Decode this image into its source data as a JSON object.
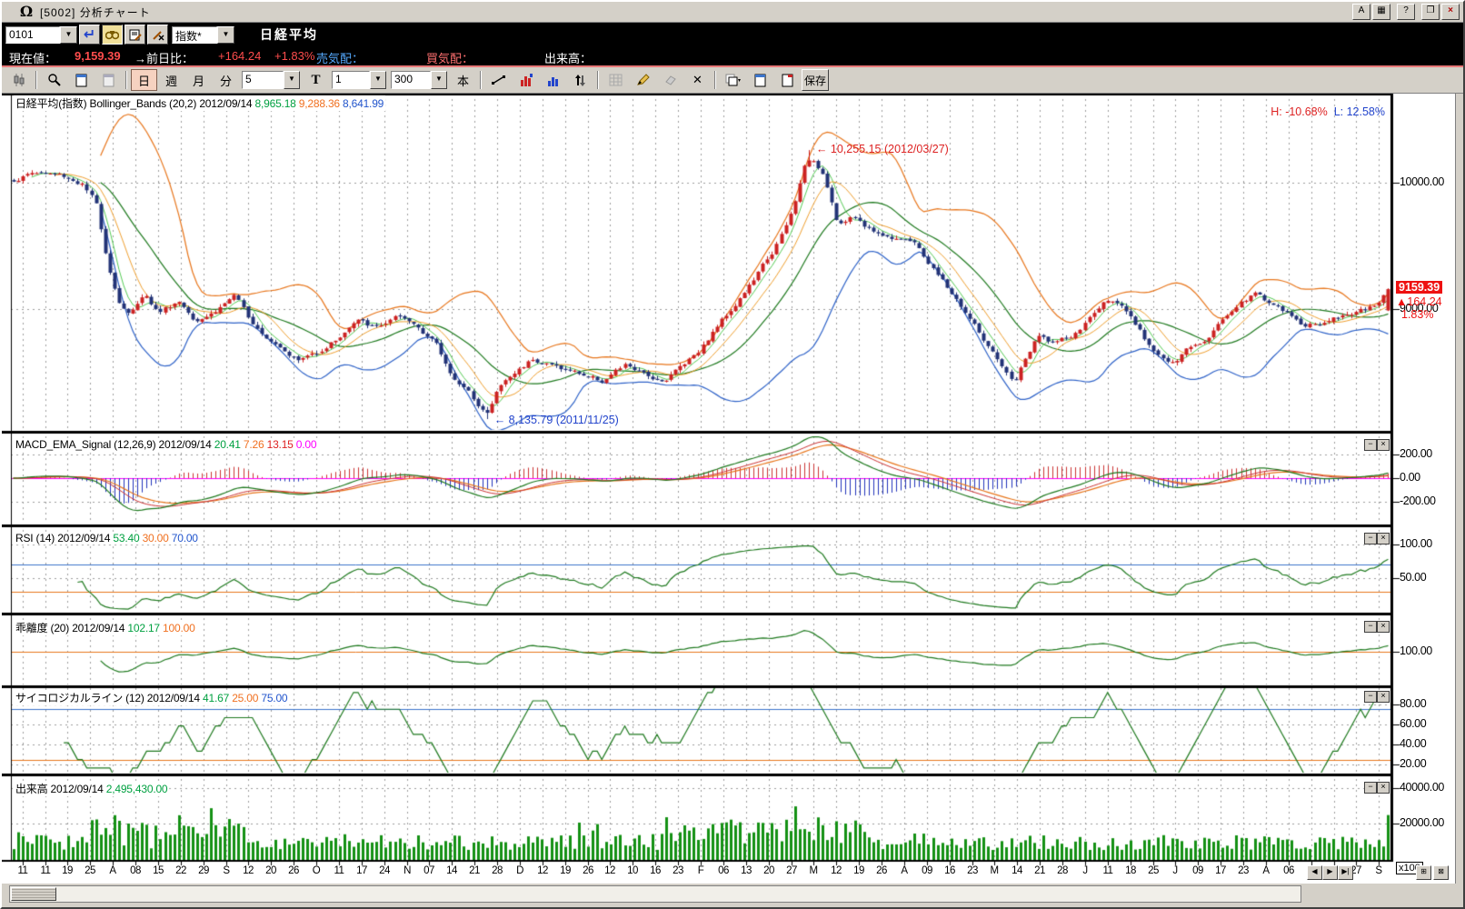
{
  "titlebar": {
    "title": "[5002] 分析チャート",
    "logo": "Ω",
    "btn_a": "A",
    "btn_help": "?"
  },
  "symbol_bar": {
    "code": "0101",
    "category": "指数*",
    "name": "日経平均"
  },
  "price_bar": {
    "genzaine_label": "現在値：",
    "price": "9,159.39",
    "zenjitsuhi_label": "→前日比：",
    "change": "+164.24",
    "change_pct": "+1.83%",
    "urikehai_label": "売気配：",
    "kaikehai_label": "買気配：",
    "dekidaka_label": "出来高："
  },
  "toolbar": {
    "period_day": "日",
    "period_week": "週",
    "period_month": "月",
    "period_min": "分",
    "min_combo": "5",
    "tick_label": "T",
    "tick_combo": "1",
    "bars_combo": "300",
    "bars_unit": "本",
    "save": "保存",
    "x_glyph": "✕"
  },
  "colors": {
    "up": "#cc2222",
    "down": "#223377",
    "bb_upper": "#e8761c",
    "bb_mid": "#1f7a1f",
    "bb_lower": "#2e62c8",
    "ma_fast": "#55cc55",
    "ma_mid": "#f0a030",
    "macd": "#1f7a1f",
    "signal": "#cc3333",
    "signal2": "#e8761c",
    "zero": "#ff00ff",
    "hist_pos": "#cc3333",
    "hist_neg": "#2233bb",
    "line_green": "#1f7a1f",
    "line_orange": "#e8761c",
    "line_blue": "#3b74cc",
    "volume": "#149114",
    "grid": "#9c9c9c",
    "val_green": "#00a040",
    "val_orange": "#f07020",
    "val_blue": "#2255cc",
    "val_red": "#dd2222",
    "val_magenta": "#ff00ff",
    "neg_red": "#dd2222",
    "pos_blue": "#2244cc"
  },
  "chart_data": {
    "type": "candlestick+indicators",
    "symbol": "日経平均(指数)",
    "date": "2012/09/14",
    "bars": 300,
    "seed": 1337,
    "close_keypoints": [
      [
        0.0,
        10020
      ],
      [
        0.015,
        10080
      ],
      [
        0.035,
        10060
      ],
      [
        0.05,
        9990
      ],
      [
        0.06,
        9830
      ],
      [
        0.068,
        9400
      ],
      [
        0.076,
        9080
      ],
      [
        0.085,
        8950
      ],
      [
        0.095,
        9140
      ],
      [
        0.105,
        8980
      ],
      [
        0.12,
        9070
      ],
      [
        0.132,
        8930
      ],
      [
        0.147,
        8990
      ],
      [
        0.16,
        9110
      ],
      [
        0.172,
        8920
      ],
      [
        0.185,
        8790
      ],
      [
        0.197,
        8700
      ],
      [
        0.207,
        8600
      ],
      [
        0.22,
        8660
      ],
      [
        0.235,
        8770
      ],
      [
        0.25,
        8910
      ],
      [
        0.263,
        8850
      ],
      [
        0.278,
        8930
      ],
      [
        0.293,
        8870
      ],
      [
        0.306,
        8760
      ],
      [
        0.316,
        8530
      ],
      [
        0.326,
        8400
      ],
      [
        0.336,
        8280
      ],
      [
        0.345,
        8180
      ],
      [
        0.353,
        8390
      ],
      [
        0.365,
        8500
      ],
      [
        0.378,
        8620
      ],
      [
        0.392,
        8560
      ],
      [
        0.41,
        8500
      ],
      [
        0.428,
        8440
      ],
      [
        0.446,
        8560
      ],
      [
        0.46,
        8470
      ],
      [
        0.474,
        8450
      ],
      [
        0.487,
        8570
      ],
      [
        0.5,
        8700
      ],
      [
        0.513,
        8890
      ],
      [
        0.526,
        9060
      ],
      [
        0.539,
        9240
      ],
      [
        0.552,
        9450
      ],
      [
        0.563,
        9670
      ],
      [
        0.57,
        9890
      ],
      [
        0.576,
        10180
      ],
      [
        0.583,
        10140
      ],
      [
        0.59,
        10060
      ],
      [
        0.6,
        9680
      ],
      [
        0.612,
        9720
      ],
      [
        0.624,
        9630
      ],
      [
        0.636,
        9570
      ],
      [
        0.648,
        9580
      ],
      [
        0.658,
        9490
      ],
      [
        0.67,
        9300
      ],
      [
        0.684,
        9100
      ],
      [
        0.698,
        8890
      ],
      [
        0.712,
        8650
      ],
      [
        0.722,
        8480
      ],
      [
        0.728,
        8430
      ],
      [
        0.736,
        8610
      ],
      [
        0.745,
        8780
      ],
      [
        0.758,
        8740
      ],
      [
        0.772,
        8790
      ],
      [
        0.785,
        8960
      ],
      [
        0.798,
        9100
      ],
      [
        0.81,
        8960
      ],
      [
        0.823,
        8760
      ],
      [
        0.836,
        8620
      ],
      [
        0.844,
        8560
      ],
      [
        0.854,
        8690
      ],
      [
        0.866,
        8770
      ],
      [
        0.878,
        8910
      ],
      [
        0.892,
        9060
      ],
      [
        0.904,
        9130
      ],
      [
        0.916,
        9040
      ],
      [
        0.928,
        8950
      ],
      [
        0.94,
        8870
      ],
      [
        0.952,
        8890
      ],
      [
        0.964,
        8940
      ],
      [
        0.977,
        8990
      ],
      [
        0.99,
        9010
      ],
      [
        1.0,
        9159.39
      ]
    ],
    "last_bar": {
      "open": 8992,
      "close": 9159.39,
      "high": 9166,
      "low": 8987,
      "volume": 24954
    },
    "panels": [
      {
        "id": "main",
        "range": [
          8050,
          10700
        ],
        "grid": [
          10000,
          9000
        ],
        "header_parts": [
          {
            "t": "日経平均(指数) Bollinger_Bands (20,2) 2012/09/14 ",
            "c": "#000000"
          },
          {
            "t": "8,965.18 ",
            "c": "#00a040"
          },
          {
            "t": "9,288.36 ",
            "c": "#f07020"
          },
          {
            "t": "8,641.99",
            "c": "#2255cc"
          }
        ],
        "y_labels": [
          {
            "v": 10000,
            "t": "10000.00"
          },
          {
            "v": 9000,
            "t": "9000.00"
          }
        ],
        "hl": {
          "h": "H: -10.68%",
          "l": "L: 12.58%"
        },
        "annotations": [
          {
            "anchor": "high",
            "text": "← 10,255.15 (2012/03/27)",
            "c": "#dd2222"
          },
          {
            "anchor": "low",
            "text": "← 8,135.79 (2011/11/25)",
            "c": "#2244cc"
          }
        ],
        "price_marker": {
          "price": "9159.39",
          "change": "▲164.24",
          "pct": "1.83%"
        }
      },
      {
        "id": "macd",
        "range": [
          -384,
          354
        ],
        "grid": [
          200,
          -200
        ],
        "zero": 0,
        "header_parts": [
          {
            "t": "MACD_EMA_Signal (12,26,9) 2012/09/14 ",
            "c": "#000000"
          },
          {
            "t": "20.41 ",
            "c": "#00a040"
          },
          {
            "t": "7.26 ",
            "c": "#f07020"
          },
          {
            "t": "13.15 ",
            "c": "#dd2222"
          },
          {
            "t": "0.00",
            "c": "#ff00ff"
          }
        ],
        "y_labels": [
          {
            "v": 200,
            "t": "200.00"
          },
          {
            "v": 0,
            "t": "0.00"
          },
          {
            "v": -200,
            "t": "-200.00"
          }
        ]
      },
      {
        "id": "rsi",
        "range": [
          0,
          122
        ],
        "grid": [
          100,
          50
        ],
        "hline_hi": 70,
        "hline_lo": 30,
        "header_parts": [
          {
            "t": "RSI (14) 2012/09/14 ",
            "c": "#000000"
          },
          {
            "t": "53.40 ",
            "c": "#00a040"
          },
          {
            "t": "30.00 ",
            "c": "#f07020"
          },
          {
            "t": "70.00",
            "c": "#2255cc"
          }
        ],
        "y_labels": [
          {
            "v": 100,
            "t": "100.00"
          },
          {
            "v": 50,
            "t": "50.00"
          }
        ]
      },
      {
        "id": "kairi",
        "range": [
          87,
          113
        ],
        "grid": [],
        "hline": 100,
        "header_parts": [
          {
            "t": "乖離度 (20) 2012/09/14 ",
            "c": "#000000"
          },
          {
            "t": "102.17 ",
            "c": "#00a040"
          },
          {
            "t": "100.00",
            "c": "#f07020"
          }
        ],
        "y_labels": [
          {
            "v": 100,
            "t": "100.00"
          }
        ]
      },
      {
        "id": "psy",
        "range": [
          12,
          96
        ],
        "grid": [
          80,
          60,
          40,
          20
        ],
        "hline_hi": 75,
        "hline_lo": 25,
        "header_parts": [
          {
            "t": "サイコロジカルライン (12) 2012/09/14 ",
            "c": "#000000"
          },
          {
            "t": "41.67 ",
            "c": "#00a040"
          },
          {
            "t": "25.00 ",
            "c": "#f07020"
          },
          {
            "t": "75.00",
            "c": "#2255cc"
          }
        ],
        "y_labels": [
          {
            "v": 80,
            "t": "80.00"
          },
          {
            "v": 60,
            "t": "60.00"
          },
          {
            "v": 40,
            "t": "40.00"
          },
          {
            "v": 20,
            "t": "20.00"
          }
        ]
      },
      {
        "id": "vol",
        "range": [
          0,
          45000
        ],
        "grid": [
          40000,
          20000
        ],
        "header_parts": [
          {
            "t": "出来高 2012/09/14 ",
            "c": "#000000"
          },
          {
            "t": "2,495,430.00",
            "c": "#00a040"
          }
        ],
        "y_labels": [
          {
            "v": 40000,
            "t": "40000.00"
          },
          {
            "v": 20000,
            "t": "20000.00"
          }
        ],
        "scale_label": "x100"
      }
    ],
    "x_labels": [
      "11",
      "11",
      "19",
      "25",
      "A",
      "08",
      "15",
      "22",
      "29",
      "S",
      "12",
      "20",
      "26",
      "O",
      "11",
      "17",
      "24",
      "N",
      "07",
      "14",
      "21",
      "28",
      "D",
      "12",
      "19",
      "26",
      "12",
      "10",
      "16",
      "23",
      "F",
      "06",
      "13",
      "20",
      "27",
      "M",
      "12",
      "19",
      "26",
      "A",
      "09",
      "16",
      "23",
      "M",
      "14",
      "21",
      "28",
      "J",
      "11",
      "18",
      "25",
      "J",
      "09",
      "17",
      "23",
      "A",
      "06",
      "13",
      "20",
      "27",
      "S"
    ],
    "nav_buttons": [
      "◀",
      "▶",
      "▶|"
    ],
    "corner_buttons": [
      "⊞",
      "⊠"
    ],
    "panel_btn_min": "−",
    "panel_btn_close": "×"
  }
}
